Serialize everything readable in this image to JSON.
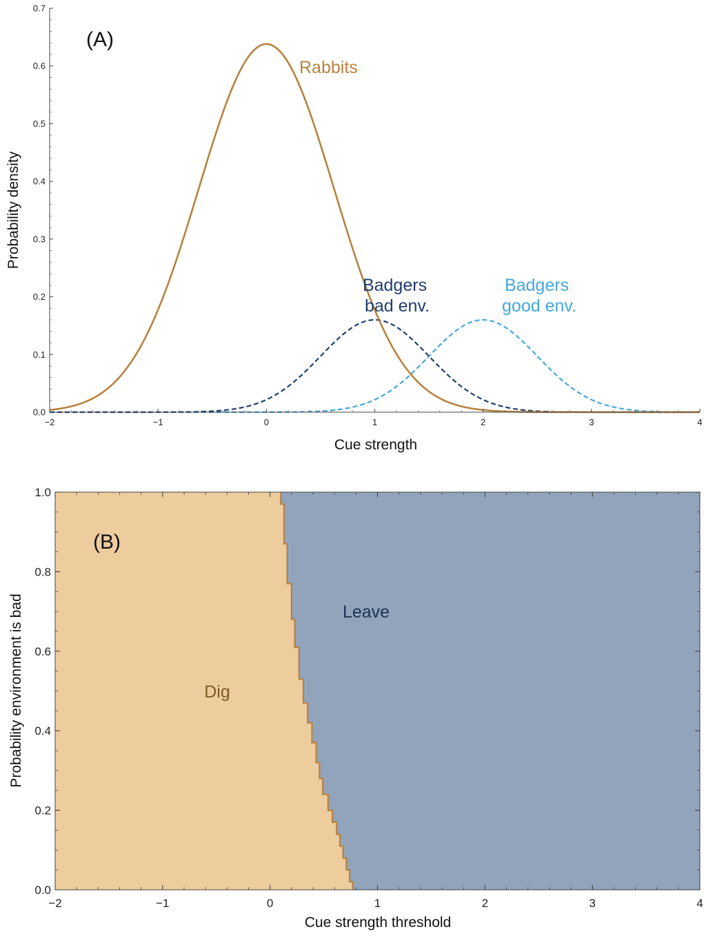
{
  "chart_data": [
    {
      "type": "line",
      "panel_label": "(A)",
      "xlabel": "Cue strength",
      "ylabel": "Probability density",
      "xlim": [
        -2,
        4
      ],
      "ylim": [
        0,
        0.7
      ],
      "x_ticks": [
        "−2",
        "−1",
        "0",
        "1",
        "2",
        "3",
        "4"
      ],
      "y_ticks": [
        "0.0",
        "0.1",
        "0.2",
        "0.3",
        "0.4",
        "0.5",
        "0.6",
        "0.7"
      ],
      "series": [
        {
          "name": "Rabbits",
          "distribution": "normal",
          "mean": 0,
          "sd": 0.625,
          "peak": 0.638,
          "style": "solid",
          "color": "#B7823F",
          "sample_x": [
            -2,
            -1.5,
            -1,
            -0.5,
            0,
            0.5,
            1,
            1.5,
            2
          ],
          "sample_y": [
            0.0,
            0.036,
            0.178,
            0.462,
            0.638,
            0.462,
            0.178,
            0.036,
            0.004
          ]
        },
        {
          "name": "Badgers bad env.",
          "distribution": "normal",
          "mean": 1,
          "sd": 0.5,
          "peak": 0.16,
          "style": "dashed",
          "color": "#1E3F6E",
          "sample_x": [
            -1,
            0,
            0.5,
            1,
            1.5,
            2,
            3
          ],
          "sample_y": [
            0.0,
            0.022,
            0.097,
            0.16,
            0.097,
            0.022,
            0.0
          ]
        },
        {
          "name": "Badgers good env.",
          "distribution": "normal",
          "mean": 2,
          "sd": 0.5,
          "peak": 0.16,
          "style": "dashed",
          "color": "#45A7DC",
          "sample_x": [
            0,
            1,
            1.5,
            2,
            2.5,
            3,
            4
          ],
          "sample_y": [
            0.0,
            0.022,
            0.097,
            0.16,
            0.097,
            0.022,
            0.0
          ]
        }
      ],
      "annotations": [
        {
          "lines": [
            "Rabbits"
          ],
          "color": "#B7823F"
        },
        {
          "lines": [
            "Badgers",
            "bad env."
          ],
          "color": "#1E3F6E"
        },
        {
          "lines": [
            "Badgers",
            "good env."
          ],
          "color": "#45A7DC"
        }
      ]
    },
    {
      "type": "area",
      "panel_label": "(B)",
      "xlabel": "Cue strength threshold",
      "ylabel": "Probability environment is bad",
      "xlim": [
        -2,
        4
      ],
      "ylim": [
        0,
        1
      ],
      "x_ticks": [
        "−2",
        "−1",
        "0",
        "1",
        "2",
        "3",
        "4"
      ],
      "y_ticks": [
        "0.0",
        "0.2",
        "0.4",
        "0.6",
        "0.8",
        "1.0"
      ],
      "regions": [
        {
          "name": "Dig",
          "fill": "#EDCC9E",
          "label_color": "#7E5A26"
        },
        {
          "name": "Leave",
          "fill": "#91A4BC",
          "label_color": "#1E3250"
        }
      ],
      "boundary_color": "#B7823F",
      "boundary": [
        [
          0.77,
          0.0
        ],
        [
          0.77,
          0.02
        ],
        [
          0.74,
          0.02
        ],
        [
          0.74,
          0.05
        ],
        [
          0.71,
          0.05
        ],
        [
          0.71,
          0.08
        ],
        [
          0.68,
          0.08
        ],
        [
          0.68,
          0.11
        ],
        [
          0.65,
          0.11
        ],
        [
          0.65,
          0.14
        ],
        [
          0.62,
          0.14
        ],
        [
          0.62,
          0.17
        ],
        [
          0.58,
          0.17
        ],
        [
          0.58,
          0.2
        ],
        [
          0.54,
          0.2
        ],
        [
          0.54,
          0.24
        ],
        [
          0.49,
          0.24
        ],
        [
          0.49,
          0.28
        ],
        [
          0.46,
          0.28
        ],
        [
          0.46,
          0.32
        ],
        [
          0.43,
          0.32
        ],
        [
          0.43,
          0.37
        ],
        [
          0.39,
          0.37
        ],
        [
          0.39,
          0.42
        ],
        [
          0.35,
          0.42
        ],
        [
          0.35,
          0.47
        ],
        [
          0.31,
          0.47
        ],
        [
          0.31,
          0.53
        ],
        [
          0.27,
          0.53
        ],
        [
          0.27,
          0.61
        ],
        [
          0.23,
          0.61
        ],
        [
          0.23,
          0.68
        ],
        [
          0.2,
          0.68
        ],
        [
          0.2,
          0.77
        ],
        [
          0.16,
          0.77
        ],
        [
          0.16,
          0.87
        ],
        [
          0.13,
          0.87
        ],
        [
          0.13,
          0.97
        ],
        [
          0.1,
          0.97
        ],
        [
          0.1,
          1.0
        ]
      ]
    }
  ]
}
